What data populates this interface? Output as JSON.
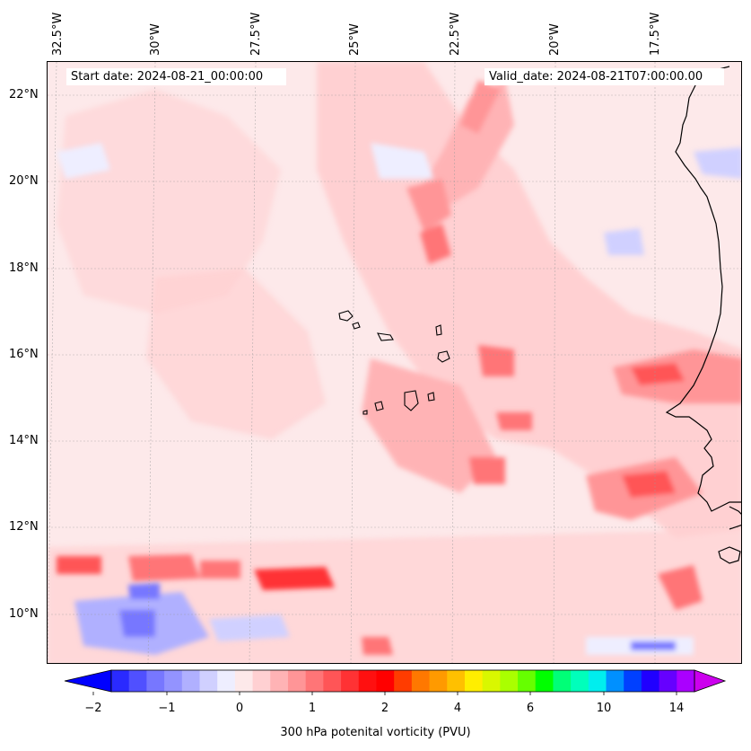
{
  "header": {
    "start_date": "Start date: 2024-08-21_00:00:00",
    "valid_date": "Valid_date: 2024-08-21T07:00:00.00"
  },
  "axes": {
    "lon_labels": [
      "32.5°W",
      "30°W",
      "27.5°W",
      "25°W",
      "22.5°W",
      "20°W",
      "17.5°W"
    ],
    "lat_labels": [
      "22°N",
      "20°N",
      "18°N",
      "16°N",
      "14°N",
      "12°N",
      "10°N"
    ]
  },
  "colorbar": {
    "title": "300 hPa potenital vorticity (PVU)",
    "tick_labels": [
      "−2",
      "−1",
      "0",
      "1",
      "2",
      "4",
      "6",
      "10",
      "14"
    ],
    "colors": [
      "#0000ff",
      "#2a2aff",
      "#5050ff",
      "#7777ff",
      "#9393ff",
      "#b0b0ff",
      "#d0d0ff",
      "#eeeeff",
      "#fde9ea",
      "#ffd0d2",
      "#ffb3b5",
      "#ff9597",
      "#ff7577",
      "#ff5557",
      "#ff3234",
      "#ff1010",
      "#ff0000",
      "#ff3c00",
      "#ff7800",
      "#ff9a00",
      "#ffc000",
      "#ffee00",
      "#d9f700",
      "#aaff00",
      "#66ff00",
      "#00ff00",
      "#00ff77",
      "#00ffbb",
      "#00eeee",
      "#0090ff",
      "#0040ff",
      "#2000ff",
      "#6600ff",
      "#aa00ff",
      "#cc00ee"
    ]
  },
  "map": {
    "background_color": "#fde9ea",
    "coast_color": "#000000"
  }
}
